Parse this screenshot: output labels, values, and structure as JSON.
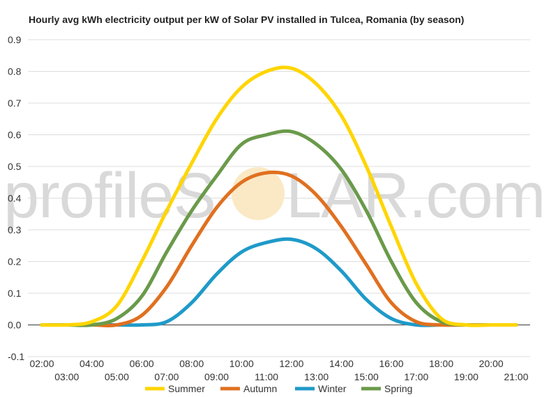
{
  "chart_data": {
    "type": "line",
    "title": "Hourly avg kWh electricity output per kW of Solar PV installed in Tulcea, Romania (by season)",
    "xlabel": "",
    "ylabel": "",
    "x": [
      "02:00",
      "03:00",
      "04:00",
      "05:00",
      "06:00",
      "07:00",
      "08:00",
      "09:00",
      "10:00",
      "11:00",
      "12:00",
      "13:00",
      "14:00",
      "15:00",
      "16:00",
      "17:00",
      "18:00",
      "19:00",
      "20:00",
      "21:00"
    ],
    "x_tick_labels": [
      "02:00",
      "03:00",
      "04:00",
      "05:00",
      "06:00",
      "07:00",
      "08:00",
      "09:00",
      "10:00",
      "11:00",
      "12:00",
      "13:00",
      "14:00",
      "15:00",
      "16:00",
      "17:00",
      "18:00",
      "19:00",
      "20:00",
      "21:00"
    ],
    "y_tick_labels": [
      "-0.1",
      "0.0",
      "0.1",
      "0.2",
      "0.3",
      "0.4",
      "0.5",
      "0.6",
      "0.7",
      "0.8",
      "0.9"
    ],
    "ylim": [
      -0.1,
      0.9
    ],
    "grid": true,
    "legend_position": "bottom",
    "series": [
      {
        "name": "Summer",
        "color": "#ffd500",
        "values": [
          0.0,
          0.0,
          0.01,
          0.06,
          0.2,
          0.36,
          0.51,
          0.65,
          0.75,
          0.8,
          0.81,
          0.76,
          0.66,
          0.5,
          0.31,
          0.13,
          0.02,
          0.0,
          0.0,
          0.0
        ]
      },
      {
        "name": "Autumn",
        "color": "#e07020",
        "values": [
          0.0,
          0.0,
          0.0,
          0.0,
          0.03,
          0.12,
          0.25,
          0.37,
          0.45,
          0.48,
          0.47,
          0.41,
          0.31,
          0.19,
          0.07,
          0.01,
          0.0,
          0.0,
          0.0,
          0.0
        ]
      },
      {
        "name": "Winter",
        "color": "#1f9ac9",
        "values": [
          0.0,
          0.0,
          0.0,
          0.0,
          0.0,
          0.01,
          0.07,
          0.16,
          0.23,
          0.26,
          0.27,
          0.24,
          0.17,
          0.08,
          0.02,
          0.0,
          0.0,
          0.0,
          0.0,
          0.0
        ]
      },
      {
        "name": "Spring",
        "color": "#6a9a4a",
        "values": [
          0.0,
          0.0,
          0.0,
          0.02,
          0.09,
          0.23,
          0.36,
          0.47,
          0.57,
          0.6,
          0.61,
          0.57,
          0.49,
          0.36,
          0.2,
          0.07,
          0.01,
          0.0,
          0.0,
          0.0
        ]
      }
    ]
  },
  "watermark": {
    "text_left": "profileS",
    "text_right": "LAR.com",
    "sun_color": "#fbe9c5"
  }
}
